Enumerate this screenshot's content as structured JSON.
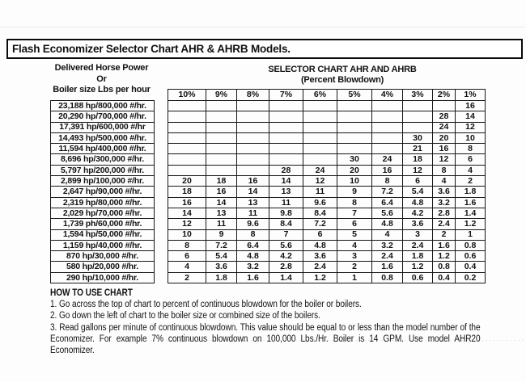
{
  "title": "Flash Economizer Selector Chart AHR & AHRB Models.",
  "left_header": {
    "line1": "Delivered Horse Power",
    "line2": "Or",
    "line3": "Boiler size Lbs per hour"
  },
  "right_header": {
    "line1": "SELECTOR CHART AHR AND AHRB",
    "line2": "(Percent Blowdown)"
  },
  "chart_data": {
    "type": "table",
    "title": "Selector Chart AHR and AHRB (Percent Blowdown)",
    "columns": [
      "10%",
      "9%",
      "8%",
      "7%",
      "6%",
      "5%",
      "4%",
      "3%",
      "2%",
      "1%"
    ],
    "rows": [
      {
        "label": "23,188 hp/800,000 #/hr.",
        "values": [
          "",
          "",
          "",
          "",
          "",
          "",
          "",
          "",
          "",
          "16"
        ]
      },
      {
        "label": "20,290 hp/700,000 #/hr.",
        "values": [
          "",
          "",
          "",
          "",
          "",
          "",
          "",
          "",
          "28",
          "14"
        ]
      },
      {
        "label": "17,391 hp/600,000 #/hr",
        "values": [
          "",
          "",
          "",
          "",
          "",
          "",
          "",
          "",
          "24",
          "12"
        ]
      },
      {
        "label": "14,493 hp/500,000 #/hr.",
        "values": [
          "",
          "",
          "",
          "",
          "",
          "",
          "",
          "30",
          "20",
          "10"
        ]
      },
      {
        "label": "11,594 hp/400,000 #/hr.",
        "values": [
          "",
          "",
          "",
          "",
          "",
          "",
          "",
          "21",
          "16",
          "8"
        ]
      },
      {
        "label": "8,696 hp/300,000 #/hr.",
        "values": [
          "",
          "",
          "",
          "",
          "",
          "30",
          "24",
          "18",
          "12",
          "6"
        ]
      },
      {
        "label": "5,797 hp/200,000 #/hr.",
        "values": [
          "",
          "",
          "",
          "28",
          "24",
          "20",
          "16",
          "12",
          "8",
          "4"
        ]
      },
      {
        "label": "2,899 hp/100,000 #/hr.",
        "values": [
          "20",
          "18",
          "16",
          "14",
          "12",
          "10",
          "8",
          "6",
          "4",
          "2"
        ]
      },
      {
        "label": "2,647 hp/90,000 #/hr.",
        "values": [
          "18",
          "16",
          "14",
          "13",
          "11",
          "9",
          "7.2",
          "5.4",
          "3.6",
          "1.8"
        ]
      },
      {
        "label": "2,319 hp/80,000 #/hr.",
        "values": [
          "16",
          "14",
          "13",
          "11",
          "9.6",
          "8",
          "6.4",
          "4.8",
          "3.2",
          "1.6"
        ]
      },
      {
        "label": "2,029 hp/70,000 #/hr.",
        "values": [
          "14",
          "13",
          "11",
          "9.8",
          "8.4",
          "7",
          "5.6",
          "4.2",
          "2.8",
          "1.4"
        ]
      },
      {
        "label": "1,739 ph/60,000 #/hr.",
        "values": [
          "12",
          "11",
          "9.6",
          "8.4",
          "7.2",
          "6",
          "4.8",
          "3.6",
          "2.4",
          "1.2"
        ]
      },
      {
        "label": "1,594 hp/50,000 #/hr.",
        "values": [
          "10",
          "9",
          "8",
          "7",
          "6",
          "5",
          "4",
          "3",
          "2",
          "1"
        ]
      },
      {
        "label": "1,159 hp/40,000 #/hr.",
        "values": [
          "8",
          "7.2",
          "6.4",
          "5.6",
          "4.8",
          "4",
          "3.2",
          "2.4",
          "1.6",
          "0.8"
        ]
      },
      {
        "label": "870 hp/30,000 #/hr.",
        "values": [
          "6",
          "5.4",
          "4.8",
          "4.2",
          "3.6",
          "3",
          "2.4",
          "1.8",
          "1.2",
          "0.6"
        ]
      },
      {
        "label": "580 hp/20,000 #/hr.",
        "values": [
          "4",
          "3.6",
          "3.2",
          "2.8",
          "2.4",
          "2",
          "1.6",
          "1.2",
          "0.8",
          "0.4"
        ]
      },
      {
        "label": "290 hp/10,000 #/hr.",
        "values": [
          "2",
          "1.8",
          "1.6",
          "1.4",
          "1.2",
          "1",
          "0.8",
          "0.6",
          "0.4",
          "0.2"
        ]
      }
    ]
  },
  "how_to_use": {
    "heading": "HOW TO USE CHART",
    "steps": [
      "1. Go across the top of chart to percent of continuous blowdown for the boiler or boilers.",
      "2. Go down the left of chart to the boiler size or combined size of the boilers.",
      "3. Read gallons per minute of continuous blowdown. This value should be equal to or less than the model number of the Economizer. For example 7% continuous blowdown on 100,000 Lbs./Hr. Boiler is 14 GPM. Use model AHR20 Economizer."
    ]
  }
}
